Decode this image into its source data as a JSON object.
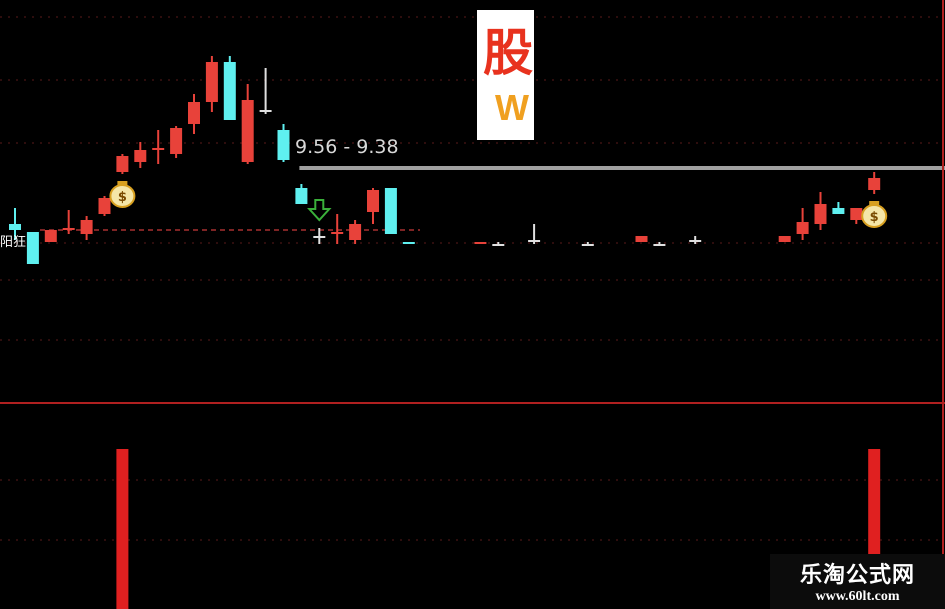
{
  "chart_data": {
    "type": "candlestick",
    "title": "",
    "colors": {
      "up": "#e8423a",
      "down": "#5ff0f0",
      "doji": "#e0e0e0",
      "background": "#000000",
      "level_line": "#a0a0a0",
      "signal_bar": "#e02020"
    },
    "candles": [
      {
        "i": 0,
        "o": 9.1,
        "h": 9.18,
        "l": 9.02,
        "c": 9.07
      },
      {
        "i": 1,
        "o": 9.06,
        "h": 9.06,
        "l": 8.9,
        "c": 8.9
      },
      {
        "i": 2,
        "o": 9.01,
        "h": 9.07,
        "l": 9.01,
        "c": 9.07
      },
      {
        "i": 3,
        "o": 9.07,
        "h": 9.17,
        "l": 9.05,
        "c": 9.08
      },
      {
        "i": 4,
        "o": 9.05,
        "h": 9.14,
        "l": 9.02,
        "c": 9.12
      },
      {
        "i": 5,
        "o": 9.15,
        "h": 9.24,
        "l": 9.14,
        "c": 9.23
      },
      {
        "i": 6,
        "o": 9.36,
        "h": 9.45,
        "l": 9.35,
        "c": 9.44
      },
      {
        "i": 7,
        "o": 9.41,
        "h": 9.51,
        "l": 9.38,
        "c": 9.47
      },
      {
        "i": 8,
        "o": 9.47,
        "h": 9.57,
        "l": 9.4,
        "c": 9.48
      },
      {
        "i": 9,
        "o": 9.45,
        "h": 9.59,
        "l": 9.43,
        "c": 9.58
      },
      {
        "i": 10,
        "o": 9.6,
        "h": 9.75,
        "l": 9.55,
        "c": 9.71
      },
      {
        "i": 11,
        "o": 9.71,
        "h": 9.94,
        "l": 9.66,
        "c": 9.91
      },
      {
        "i": 12,
        "o": 9.91,
        "h": 9.94,
        "l": 9.62,
        "c": 9.62
      },
      {
        "i": 13,
        "o": 9.41,
        "h": 9.8,
        "l": 9.4,
        "c": 9.72
      },
      {
        "i": 14,
        "o": 9.67,
        "h": 9.88,
        "l": 9.65,
        "c": 9.67
      },
      {
        "i": 15,
        "o": 9.57,
        "h": 9.6,
        "l": 9.41,
        "c": 9.42
      },
      {
        "i": 16,
        "o": 9.28,
        "h": 9.3,
        "l": 9.2,
        "c": 9.2
      },
      {
        "i": 17,
        "o": 9.04,
        "h": 9.08,
        "l": 9.0,
        "c": 9.04
      },
      {
        "i": 18,
        "o": 9.05,
        "h": 9.15,
        "l": 9.0,
        "c": 9.06
      },
      {
        "i": 19,
        "o": 9.02,
        "h": 9.12,
        "l": 9.0,
        "c": 9.1
      },
      {
        "i": 20,
        "o": 9.16,
        "h": 9.28,
        "l": 9.1,
        "c": 9.27
      },
      {
        "i": 21,
        "o": 9.28,
        "h": 9.28,
        "l": 9.05,
        "c": 9.05
      },
      {
        "i": 22,
        "o": 9.01,
        "h": 9.01,
        "l": 9.0,
        "c": 9.0
      },
      {
        "i": 26,
        "o": 9.0,
        "h": 9.01,
        "l": 9.0,
        "c": 9.01
      },
      {
        "i": 27,
        "o": 9.0,
        "h": 9.01,
        "l": 9.0,
        "c": 9.0
      },
      {
        "i": 29,
        "o": 9.02,
        "h": 9.1,
        "l": 9.0,
        "c": 9.02
      },
      {
        "i": 32,
        "o": 9.0,
        "h": 9.01,
        "l": 9.0,
        "c": 9.0
      },
      {
        "i": 35,
        "o": 9.01,
        "h": 9.04,
        "l": 9.01,
        "c": 9.04
      },
      {
        "i": 36,
        "o": 9.0,
        "h": 9.01,
        "l": 9.0,
        "c": 9.0
      },
      {
        "i": 38,
        "o": 9.02,
        "h": 9.04,
        "l": 9.0,
        "c": 9.02
      },
      {
        "i": 43,
        "o": 9.01,
        "h": 9.04,
        "l": 9.01,
        "c": 9.04
      },
      {
        "i": 44,
        "o": 9.05,
        "h": 9.18,
        "l": 9.02,
        "c": 9.11
      },
      {
        "i": 45,
        "o": 9.1,
        "h": 9.26,
        "l": 9.07,
        "c": 9.2
      },
      {
        "i": 46,
        "o": 9.18,
        "h": 9.21,
        "l": 9.15,
        "c": 9.15
      },
      {
        "i": 47,
        "o": 9.12,
        "h": 9.18,
        "l": 9.1,
        "c": 9.18
      },
      {
        "i": 48,
        "o": 9.27,
        "h": 9.36,
        "l": 9.25,
        "c": 9.33
      }
    ],
    "level_line": {
      "value": 9.38,
      "from_i": 16
    },
    "support_line": {
      "value": 9.07
    },
    "range_label": "9.56 - 9.38",
    "signal_text": "阳狂",
    "buy_signals": [
      6,
      48
    ],
    "down_arrows": [
      17
    ],
    "bottom_bars": [
      {
        "i": 6,
        "value": 1
      },
      {
        "i": 48,
        "value": 1
      }
    ]
  },
  "logo": {
    "char": "股",
    "letter": "W"
  },
  "watermark": {
    "name": "乐淘公式网",
    "url": "www.60lt.com"
  }
}
